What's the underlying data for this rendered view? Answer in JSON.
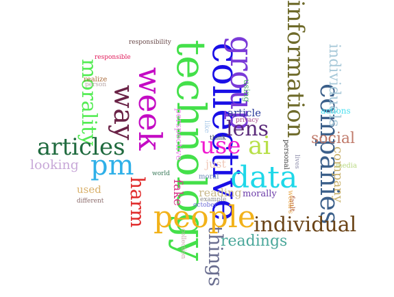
{
  "word_cloud": {
    "words": [
      {
        "text": "technology",
        "color": "#44e04a"
      },
      {
        "text": "collective",
        "color": "#1a0fe6"
      },
      {
        "text": "group",
        "color": "#7a3ad8"
      },
      {
        "text": "information",
        "color": "#6e6a2a"
      },
      {
        "text": "companies",
        "color": "#3b5f8a"
      },
      {
        "text": "individuals",
        "color": "#a8c9d9"
      },
      {
        "text": "week",
        "color": "#c40cc4"
      },
      {
        "text": "way",
        "color": "#6a2246"
      },
      {
        "text": "morality",
        "color": "#55ec55"
      },
      {
        "text": "articles",
        "color": "#1f6a3e"
      },
      {
        "text": "pm",
        "color": "#2fb0e8"
      },
      {
        "text": "harm",
        "color": "#e02a2a"
      },
      {
        "text": "fake",
        "color": "#d8348a"
      },
      {
        "text": "people",
        "color": "#f2b21a"
      },
      {
        "text": "things",
        "color": "#6a6e90"
      },
      {
        "text": "readings",
        "color": "#4aa79a"
      },
      {
        "text": "individual",
        "color": "#6a4316"
      },
      {
        "text": "data",
        "color": "#1ed7e8"
      },
      {
        "text": "ai",
        "color": "#b8e04a"
      },
      {
        "text": "use",
        "color": "#f01ad0"
      },
      {
        "text": "lens",
        "color": "#5a2a7a"
      },
      {
        "text": "social",
        "color": "#c07a6a"
      },
      {
        "text": "company",
        "color": "#c8b06a"
      },
      {
        "text": "looking",
        "color": "#c8a8d8"
      },
      {
        "text": "used",
        "color": "#d8b06a"
      },
      {
        "text": "different",
        "color": "#8a6a6a"
      },
      {
        "text": "just",
        "color": "#f0c8b8"
      },
      {
        "text": "reading",
        "color": "#c8b88a"
      },
      {
        "text": "morally",
        "color": "#6a3aa8"
      },
      {
        "text": "article",
        "color": "#2a3a9a"
      },
      {
        "text": "privacy",
        "color": "#a84a8a"
      },
      {
        "text": "perspective",
        "color": "#e88ae8"
      },
      {
        "text": "actions",
        "color": "#4ae0f0"
      },
      {
        "text": "media",
        "color": "#b8d880"
      },
      {
        "text": "responsible",
        "color": "#e01a5a"
      },
      {
        "text": "responsibility",
        "color": "#6a4a4a"
      },
      {
        "text": "realize",
        "color": "#a86a3a"
      },
      {
        "text": "person",
        "color": "#b8a8a8"
      },
      {
        "text": "using",
        "color": "#4aa86a"
      },
      {
        "text": "think",
        "color": "#3a4a5a"
      },
      {
        "text": "like",
        "color": "#a8c8e8"
      },
      {
        "text": "moral",
        "color": "#6a8ab8"
      },
      {
        "text": "world",
        "color": "#3a7a5a"
      },
      {
        "text": "example",
        "color": "#8a8a8a"
      },
      {
        "text": "october",
        "color": "#6a6ad8"
      },
      {
        "text": "collection",
        "color": "#c8a8a8"
      },
      {
        "text": "personal",
        "color": "#3a3a3a"
      },
      {
        "text": "fault",
        "color": "#a84a2a"
      },
      {
        "text": "week's",
        "color": "#e8a84a"
      },
      {
        "text": "lives",
        "color": "#8a8aa8"
      }
    ]
  }
}
